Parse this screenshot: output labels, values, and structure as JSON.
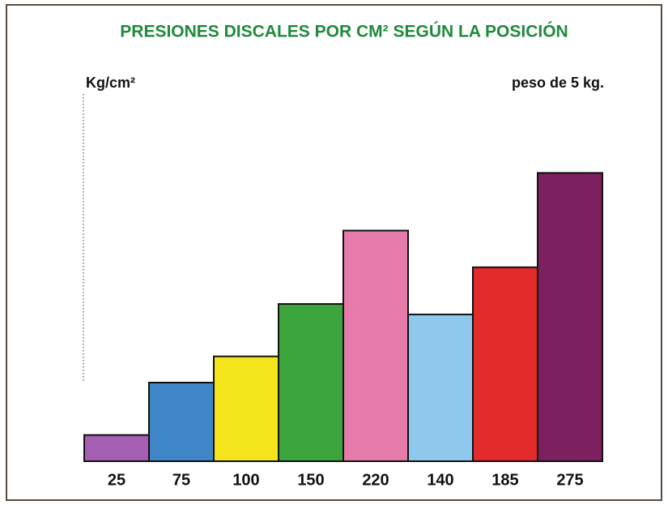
{
  "chart_data": {
    "type": "bar",
    "title": "PRESIONES DISCALES POR CM² SEGÚN LA POSICIÓN",
    "y_label": "Kg/cm²",
    "annotation": "peso de 5 kg.",
    "categories": [
      null,
      null,
      null,
      null,
      null,
      null,
      null,
      null
    ],
    "values": [
      25,
      75,
      100,
      150,
      220,
      140,
      185,
      275
    ],
    "colors": [
      "#a45fb3",
      "#3f86c8",
      "#f3e41c",
      "#3ca63c",
      "#e67aa8",
      "#8ec8ec",
      "#e42b2b",
      "#7c2060"
    ],
    "ylim": [
      0,
      300
    ]
  }
}
